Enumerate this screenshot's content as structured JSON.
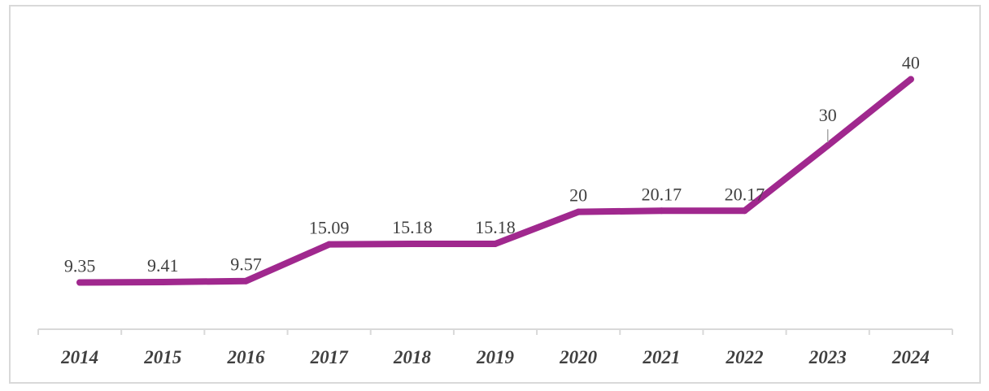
{
  "chart_data": {
    "type": "line",
    "categories": [
      "2014",
      "2015",
      "2016",
      "2017",
      "2018",
      "2019",
      "2020",
      "2021",
      "2022",
      "2023",
      "2024"
    ],
    "series": [
      {
        "values": [
          9.35,
          9.41,
          9.57,
          15.09,
          15.18,
          15.18,
          20,
          20.17,
          20.17,
          30,
          40
        ],
        "labels": [
          "9.35",
          "9.41",
          "9.57",
          "15.09",
          "15.18",
          "15.18",
          "20",
          "20.17",
          "20.17",
          "30",
          "40"
        ],
        "color": "#a0288e"
      }
    ],
    "ylim": [
      2.3,
      44.6
    ],
    "grid": false,
    "legend": "none",
    "title": "",
    "xlabel": "",
    "ylabel": ""
  }
}
